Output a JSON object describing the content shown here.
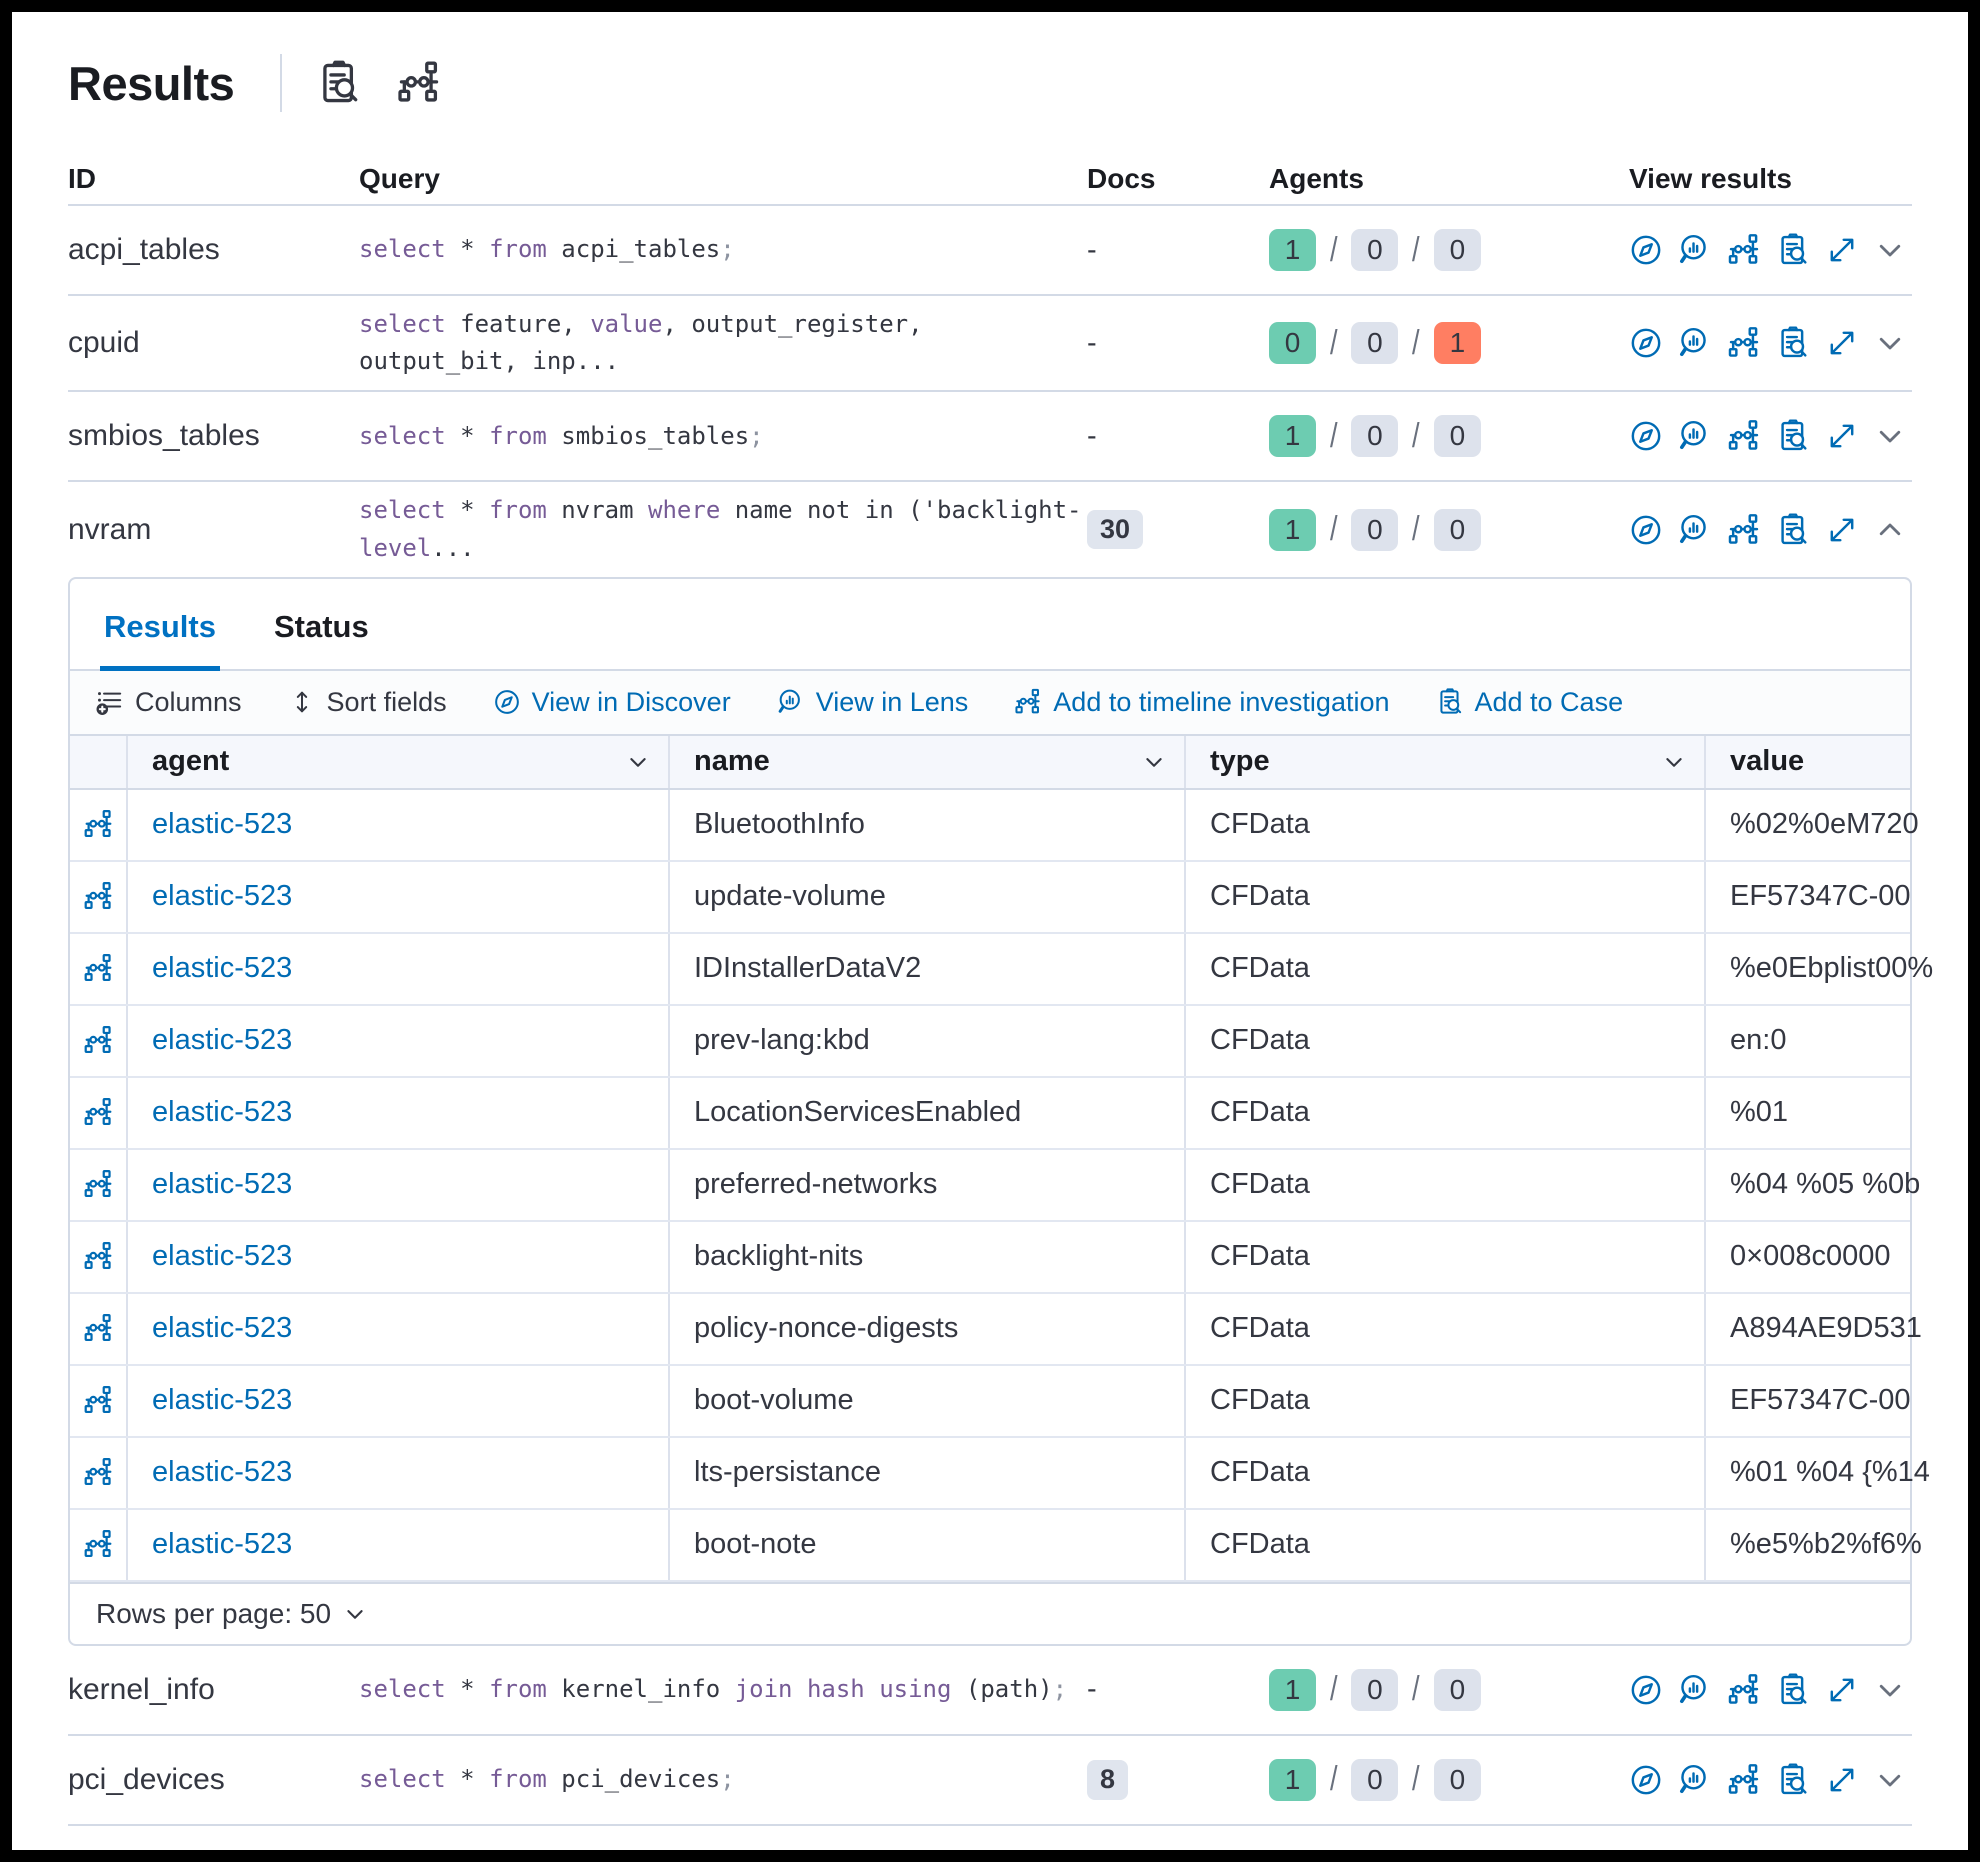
{
  "header": {
    "title": "Results",
    "icons": [
      {
        "name": "inspect-icon"
      },
      {
        "name": "timeline-icon"
      }
    ]
  },
  "columns": {
    "id": "ID",
    "query": "Query",
    "docs": "Docs",
    "agents": "Agents",
    "view_results": "View results"
  },
  "queries_top": [
    {
      "id": "acpi_tables",
      "query_tokens": [
        {
          "t": "select",
          "c": "kw"
        },
        {
          "t": " * ",
          "c": "p"
        },
        {
          "t": "from",
          "c": "kw"
        },
        {
          "t": " acpi_tables",
          "c": "p"
        },
        {
          "t": ";",
          "c": "pun"
        }
      ],
      "docs": "-",
      "agents": {
        "success": 1,
        "pending": 0,
        "failed": 0
      },
      "expanded": false
    },
    {
      "id": "cpuid",
      "query_tokens": [
        {
          "t": "select",
          "c": "kw"
        },
        {
          "t": " feature, ",
          "c": "p"
        },
        {
          "t": "value",
          "c": "kw"
        },
        {
          "t": ", output_register, output_bit, inp...",
          "c": "p"
        }
      ],
      "docs": "-",
      "agents": {
        "success": 0,
        "pending": 0,
        "failed": 1
      },
      "expanded": false
    },
    {
      "id": "smbios_tables",
      "query_tokens": [
        {
          "t": "select",
          "c": "kw"
        },
        {
          "t": " * ",
          "c": "p"
        },
        {
          "t": "from",
          "c": "kw"
        },
        {
          "t": " smbios_tables",
          "c": "p"
        },
        {
          "t": ";",
          "c": "pun"
        }
      ],
      "docs": "-",
      "agents": {
        "success": 1,
        "pending": 0,
        "failed": 0
      },
      "expanded": false
    },
    {
      "id": "nvram",
      "query_tokens": [
        {
          "t": "select",
          "c": "kw"
        },
        {
          "t": " * ",
          "c": "p"
        },
        {
          "t": "from",
          "c": "kw"
        },
        {
          "t": " nvram ",
          "c": "p"
        },
        {
          "t": "where",
          "c": "kw"
        },
        {
          "t": " name not in ('backlight-",
          "c": "p"
        },
        {
          "t": "level",
          "c": "kw"
        },
        {
          "t": "...",
          "c": "p"
        }
      ],
      "docs": "30",
      "agents": {
        "success": 1,
        "pending": 0,
        "failed": 0
      },
      "expanded": true
    }
  ],
  "queries_bottom": [
    {
      "id": "kernel_info",
      "query_tokens": [
        {
          "t": "select",
          "c": "kw"
        },
        {
          "t": " * ",
          "c": "p"
        },
        {
          "t": "from",
          "c": "kw"
        },
        {
          "t": " kernel_info ",
          "c": "p"
        },
        {
          "t": "join",
          "c": "kw"
        },
        {
          "t": " ",
          "c": "p"
        },
        {
          "t": "hash",
          "c": "kw"
        },
        {
          "t": " ",
          "c": "p"
        },
        {
          "t": "using",
          "c": "kw"
        },
        {
          "t": " (path)",
          "c": "p"
        },
        {
          "t": ";",
          "c": "pun"
        }
      ],
      "docs": "-",
      "agents": {
        "success": 1,
        "pending": 0,
        "failed": 0
      },
      "expanded": false
    },
    {
      "id": "pci_devices",
      "query_tokens": [
        {
          "t": "select",
          "c": "kw"
        },
        {
          "t": " * ",
          "c": "p"
        },
        {
          "t": "from",
          "c": "kw"
        },
        {
          "t": " pci_devices",
          "c": "p"
        },
        {
          "t": ";",
          "c": "pun"
        }
      ],
      "docs": "8",
      "agents": {
        "success": 1,
        "pending": 0,
        "failed": 0
      },
      "expanded": false
    }
  ],
  "panel": {
    "tabs": [
      {
        "label": "Results",
        "active": true
      },
      {
        "label": "Status",
        "active": false
      }
    ],
    "toolbar": [
      {
        "label": "Columns",
        "icon": "columns-icon",
        "link": false
      },
      {
        "label": "Sort fields",
        "icon": "sort-icon",
        "link": false
      },
      {
        "label": "View in Discover",
        "icon": "discover-icon",
        "link": true
      },
      {
        "label": "View in Lens",
        "icon": "lens-icon",
        "link": true
      },
      {
        "label": "Add to timeline investigation",
        "icon": "timeline-icon",
        "link": true
      },
      {
        "label": "Add to Case",
        "icon": "inspect-icon",
        "link": true
      }
    ],
    "grid": {
      "headers": [
        "agent",
        "name",
        "type",
        "value"
      ],
      "rows": [
        {
          "agent": "elastic-523",
          "name": "BluetoothInfo",
          "type": "CFData",
          "value": "%02%0eM720"
        },
        {
          "agent": "elastic-523",
          "name": "update-volume",
          "type": "CFData",
          "value": "EF57347C-00"
        },
        {
          "agent": "elastic-523",
          "name": "IDInstallerDataV2",
          "type": "CFData",
          "value": "%e0Ebplist00%"
        },
        {
          "agent": "elastic-523",
          "name": "prev-lang:kbd",
          "type": "CFData",
          "value": "en:0"
        },
        {
          "agent": "elastic-523",
          "name": "LocationServicesEnabled",
          "type": "CFData",
          "value": "%01"
        },
        {
          "agent": "elastic-523",
          "name": "preferred-networks",
          "type": "CFData",
          "value": "%04 %05 %0b"
        },
        {
          "agent": "elastic-523",
          "name": "backlight-nits",
          "type": "CFData",
          "value": "0×008c0000"
        },
        {
          "agent": "elastic-523",
          "name": "policy-nonce-digests",
          "type": "CFData",
          "value": "A894AE9D531"
        },
        {
          "agent": "elastic-523",
          "name": "boot-volume",
          "type": "CFData",
          "value": "EF57347C-00"
        },
        {
          "agent": "elastic-523",
          "name": "lts-persistance",
          "type": "CFData",
          "value": "%01 %04 {%14"
        },
        {
          "agent": "elastic-523",
          "name": "boot-note",
          "type": "CFData",
          "value": "%e5%b2%f6%"
        }
      ]
    },
    "footer": {
      "rows_per_page_label": "Rows per page: 50"
    }
  },
  "colors": {
    "primary_blue": "#006BB4",
    "tab_blue": "#0071C2",
    "keyword_purple": "#765B96",
    "badge_success": "#6DCCB1",
    "badge_neutral": "#DDE2EC",
    "badge_failed": "#FF7E62",
    "border": "#D3DAE6",
    "text": "#343741"
  }
}
